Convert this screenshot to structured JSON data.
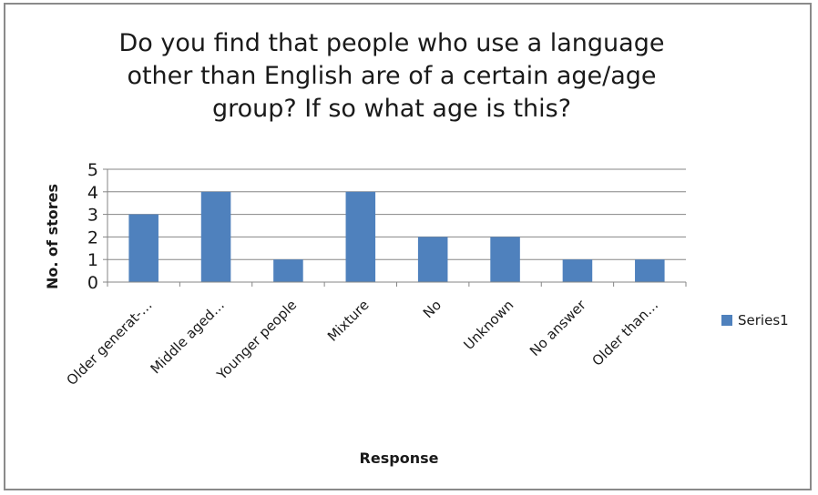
{
  "chart_data": {
    "type": "bar",
    "title": "Do you find that people who use a language\nother than English are of a certain age/age\ngroup? If so what age is this?",
    "xlabel": "Response",
    "ylabel": "No. of stores",
    "categories": [
      "Older generat-…",
      "Middle aged…",
      "Younger people",
      "Mixture",
      "No",
      "Unknown",
      "No answer",
      "Older than…"
    ],
    "series": [
      {
        "name": "Series1",
        "values": [
          3,
          4,
          1,
          4,
          2,
          2,
          1,
          1
        ]
      }
    ],
    "ylim": [
      0,
      5
    ],
    "yticks": [
      "0",
      "1",
      "2",
      "3",
      "4",
      "5"
    ],
    "grid": true,
    "legend": "right",
    "colors": {
      "bar": "#4f81bd",
      "grid": "#868686",
      "axis": "#868686"
    }
  }
}
